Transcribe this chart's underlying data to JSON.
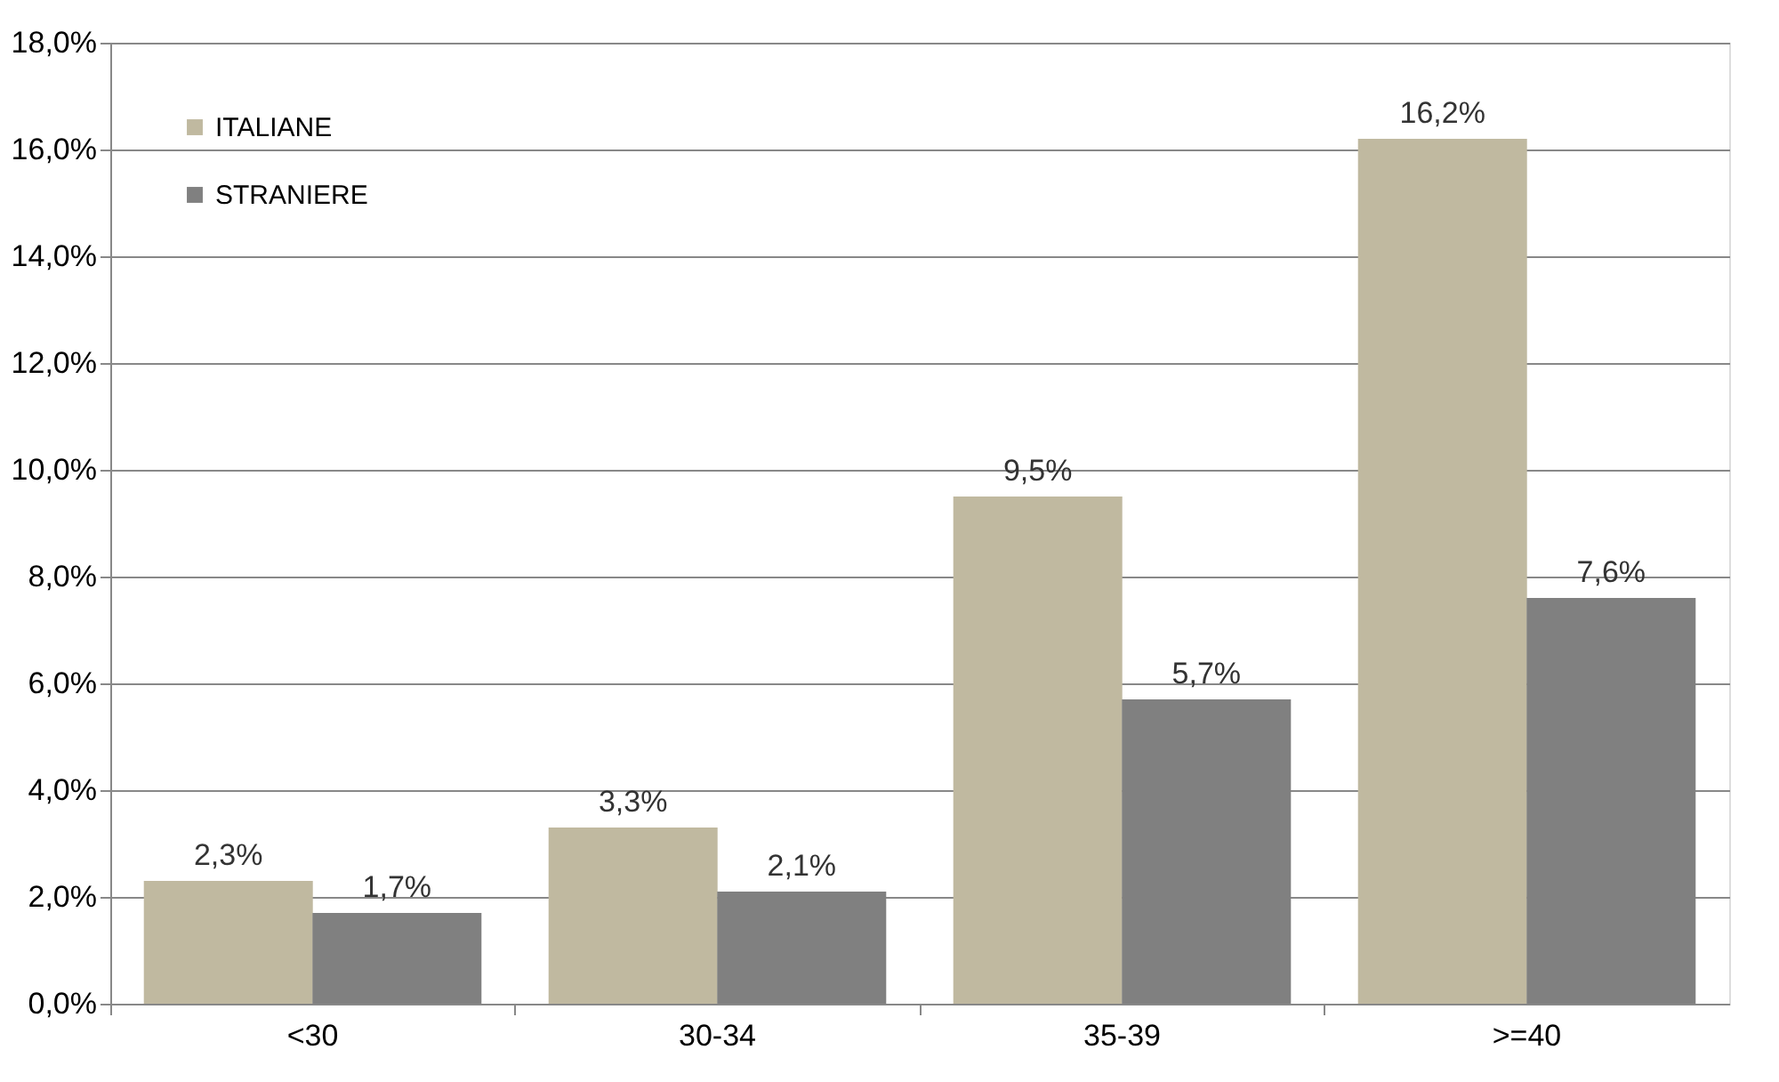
{
  "chart_data": {
    "type": "bar",
    "categories": [
      "<30",
      "30-34",
      "35-39",
      ">=40"
    ],
    "series": [
      {
        "name": "ITALIANE",
        "color": "#c0b9a0",
        "values": [
          2.3,
          3.3,
          9.5,
          16.2
        ],
        "value_labels": [
          "2,3%",
          "3,3%",
          "9,5%",
          "16,2%"
        ]
      },
      {
        "name": "STRANIERE",
        "color": "#808080",
        "values": [
          1.7,
          2.1,
          5.7,
          7.6
        ],
        "value_labels": [
          "1,7%",
          "2,1%",
          "5,7%",
          "7,6%"
        ]
      }
    ],
    "ylim": [
      0,
      18
    ],
    "yticks": [
      {
        "value": 0,
        "label": "0,0%"
      },
      {
        "value": 2,
        "label": "2,0%"
      },
      {
        "value": 4,
        "label": "4,0%"
      },
      {
        "value": 6,
        "label": "6,0%"
      },
      {
        "value": 8,
        "label": "8,0%"
      },
      {
        "value": 10,
        "label": "10,0%"
      },
      {
        "value": 12,
        "label": "12,0%"
      },
      {
        "value": 14,
        "label": "14,0%"
      },
      {
        "value": 16,
        "label": "16,0%"
      },
      {
        "value": 18,
        "label": "18,0%"
      }
    ],
    "grid": "y",
    "legend": "top left"
  }
}
